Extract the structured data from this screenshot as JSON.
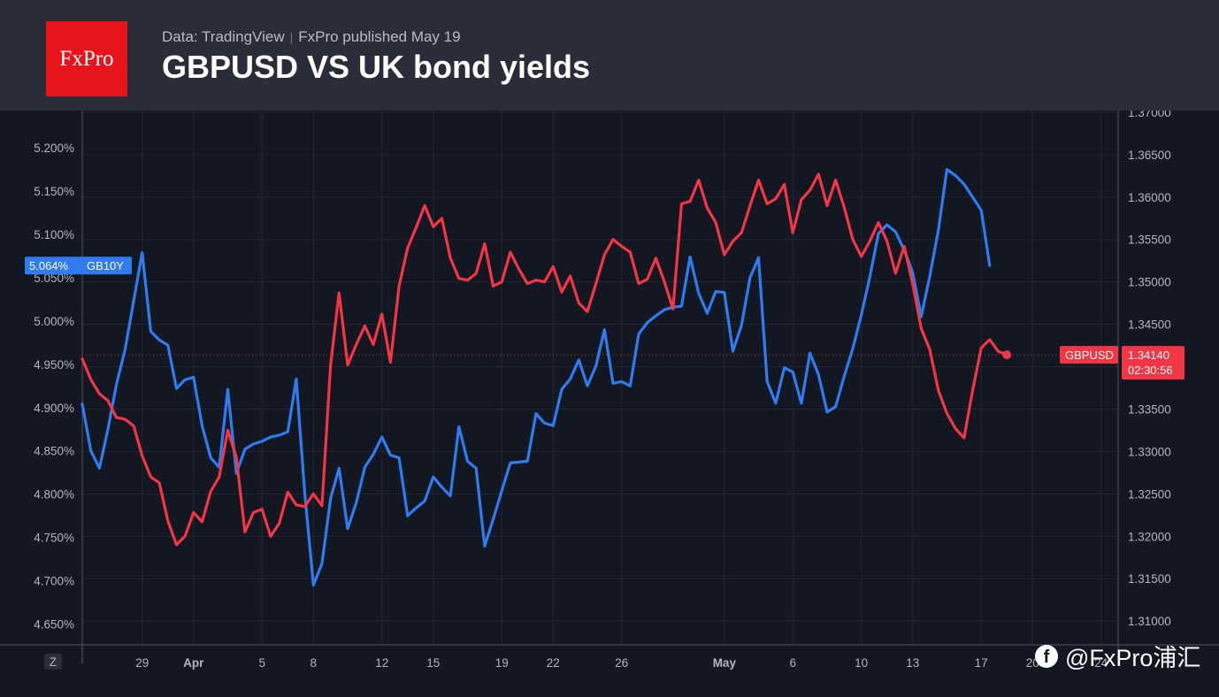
{
  "header": {
    "logo_text": "FxPro",
    "source": "Data: TradingView",
    "published": "FxPro published May 19",
    "title": "GBPUSD VS UK bond yields"
  },
  "watermark": {
    "text": "@FxPro浦汇"
  },
  "chart_data": {
    "type": "line",
    "title": "GBPUSD VS UK bond yields",
    "grid": true,
    "legend": "none",
    "x_ticks": [
      {
        "label": "29",
        "idx": 7,
        "bold": false
      },
      {
        "label": "Apr",
        "idx": 13,
        "bold": true
      },
      {
        "label": "5",
        "idx": 21,
        "bold": false
      },
      {
        "label": "8",
        "idx": 27,
        "bold": false
      },
      {
        "label": "12",
        "idx": 35,
        "bold": false
      },
      {
        "label": "15",
        "idx": 41,
        "bold": false
      },
      {
        "label": "19",
        "idx": 49,
        "bold": false
      },
      {
        "label": "22",
        "idx": 55,
        "bold": false
      },
      {
        "label": "26",
        "idx": 63,
        "bold": false
      },
      {
        "label": "May",
        "idx": 75,
        "bold": true
      },
      {
        "label": "6",
        "idx": 83,
        "bold": false
      },
      {
        "label": "10",
        "idx": 91,
        "bold": false
      },
      {
        "label": "13",
        "idx": 97,
        "bold": false
      },
      {
        "label": "17",
        "idx": 105,
        "bold": false
      },
      {
        "label": "20",
        "idx": 111,
        "bold": false
      },
      {
        "label": "24",
        "idx": 119,
        "bold": false
      }
    ],
    "x_range": [
      0,
      121
    ],
    "left_axis": {
      "ticks": [
        "5.200%",
        "5.150%",
        "5.100%",
        "5.050%",
        "5.000%",
        "4.950%",
        "4.900%",
        "4.850%",
        "4.800%",
        "4.750%",
        "4.700%",
        "4.650%"
      ],
      "ylim": [
        4.626,
        5.243
      ]
    },
    "right_axis": {
      "ticks": [
        "1.37000",
        "1.36500",
        "1.36000",
        "1.35500",
        "1.35000",
        "1.34500",
        "1.34000",
        "1.33500",
        "1.33000",
        "1.32500",
        "1.32000",
        "1.31500",
        "1.31000"
      ],
      "ylim": [
        1.3072,
        1.3702
      ]
    },
    "series": [
      {
        "name": "GB10Y",
        "color": "#2f7bef",
        "axis": "left",
        "last_label": "5.064%",
        "x": [
          0,
          1,
          2,
          3,
          4,
          5,
          6,
          7,
          8,
          9,
          10,
          11,
          12,
          13,
          14,
          15,
          16,
          17,
          18,
          19,
          20,
          21,
          22,
          23,
          24,
          25,
          26,
          27,
          28,
          29,
          30,
          31,
          32,
          33,
          34,
          35,
          36,
          37,
          38,
          39,
          40,
          41,
          42,
          43,
          44,
          45,
          46,
          47,
          48,
          49,
          50,
          51,
          52,
          53,
          54,
          55,
          56,
          57,
          58,
          59,
          60,
          61,
          62,
          63,
          64,
          65,
          66,
          67,
          68,
          69,
          70,
          71,
          72,
          73,
          74,
          75,
          76,
          77,
          78,
          79,
          80,
          81,
          82,
          83,
          84,
          85,
          86,
          87,
          88,
          89,
          90,
          91,
          92,
          93,
          94,
          95,
          96,
          97,
          98,
          99,
          100,
          101,
          102,
          103,
          104,
          105,
          106
        ],
        "y": [
          4.904,
          4.85,
          4.83,
          4.875,
          4.927,
          4.967,
          5.023,
          5.079,
          4.988,
          4.978,
          4.972,
          4.922,
          4.932,
          4.935,
          4.879,
          4.842,
          4.831,
          4.921,
          4.824,
          4.852,
          4.858,
          4.861,
          4.866,
          4.868,
          4.872,
          4.933,
          4.8,
          4.695,
          4.72,
          4.795,
          4.83,
          4.76,
          4.79,
          4.831,
          4.846,
          4.866,
          4.845,
          4.842,
          4.775,
          4.784,
          4.792,
          4.82,
          4.808,
          4.798,
          4.878,
          4.838,
          4.83,
          4.74,
          4.771,
          4.804,
          4.836,
          4.837,
          4.838,
          4.893,
          4.882,
          4.879,
          4.921,
          4.933,
          4.955,
          4.925,
          4.948,
          4.99,
          4.928,
          4.93,
          4.925,
          4.985,
          4.998,
          5.006,
          5.013,
          5.016,
          5.017,
          5.074,
          5.032,
          5.009,
          5.034,
          5.033,
          4.965,
          4.995,
          5.05,
          5.073,
          4.93,
          4.905,
          4.946,
          4.941,
          4.905,
          4.963,
          4.938,
          4.895,
          4.901,
          4.936,
          4.968,
          5.007,
          5.051,
          5.101,
          5.111,
          5.103,
          5.082,
          5.056,
          5.005,
          5.052,
          5.105,
          5.175,
          5.168,
          5.158,
          5.143,
          5.128,
          5.064
        ]
      },
      {
        "name": "GBPUSD",
        "color": "#f23645",
        "axis": "right",
        "last_label": "1.34140",
        "countdown": "02:30:56",
        "x": [
          0,
          1,
          2,
          3,
          4,
          5,
          6,
          7,
          8,
          9,
          10,
          11,
          12,
          13,
          14,
          15,
          16,
          17,
          18,
          19,
          20,
          21,
          22,
          23,
          24,
          25,
          26,
          27,
          28,
          29,
          30,
          31,
          32,
          33,
          34,
          35,
          36,
          37,
          38,
          39,
          40,
          41,
          42,
          43,
          44,
          45,
          46,
          47,
          48,
          49,
          50,
          51,
          52,
          53,
          54,
          55,
          56,
          57,
          58,
          59,
          60,
          61,
          62,
          63,
          64,
          65,
          66,
          67,
          68,
          69,
          70,
          71,
          72,
          73,
          74,
          75,
          76,
          77,
          78,
          79,
          80,
          81,
          82,
          83,
          84,
          85,
          86,
          87,
          88,
          89,
          90,
          91,
          92,
          93,
          94,
          95,
          96,
          97,
          98,
          99,
          100,
          101,
          102,
          103,
          104,
          105,
          106,
          107,
          108
        ],
        "y": [
          1.3409,
          1.3385,
          1.3368,
          1.336,
          1.334,
          1.3338,
          1.333,
          1.3295,
          1.327,
          1.3263,
          1.3218,
          1.319,
          1.32,
          1.3228,
          1.3217,
          1.3253,
          1.327,
          1.3325,
          1.3293,
          1.3205,
          1.3228,
          1.3232,
          1.32,
          1.3215,
          1.3252,
          1.3237,
          1.3235,
          1.325,
          1.3236,
          1.3402,
          1.3487,
          1.3402,
          1.3426,
          1.3448,
          1.3426,
          1.3462,
          1.3405,
          1.3495,
          1.354,
          1.3564,
          1.359,
          1.3565,
          1.3575,
          1.3528,
          1.3504,
          1.3502,
          1.351,
          1.3545,
          1.3495,
          1.35,
          1.3535,
          1.3515,
          1.3498,
          1.3502,
          1.35,
          1.3518,
          1.3488,
          1.3507,
          1.3475,
          1.3465,
          1.3498,
          1.3532,
          1.355,
          1.3542,
          1.3535,
          1.3498,
          1.3503,
          1.3528,
          1.35,
          1.3468,
          1.3592,
          1.3595,
          1.362,
          1.3587,
          1.357,
          1.3532,
          1.3548,
          1.3558,
          1.359,
          1.362,
          1.3592,
          1.3598,
          1.3615,
          1.3558,
          1.3597,
          1.3608,
          1.3627,
          1.359,
          1.362,
          1.3588,
          1.355,
          1.353,
          1.3548,
          1.357,
          1.3548,
          1.351,
          1.3542,
          1.3498,
          1.3445,
          1.342,
          1.3372,
          1.3345,
          1.3327,
          1.3316,
          1.3372,
          1.3422,
          1.3432,
          1.3418,
          1.3414
        ]
      }
    ]
  }
}
